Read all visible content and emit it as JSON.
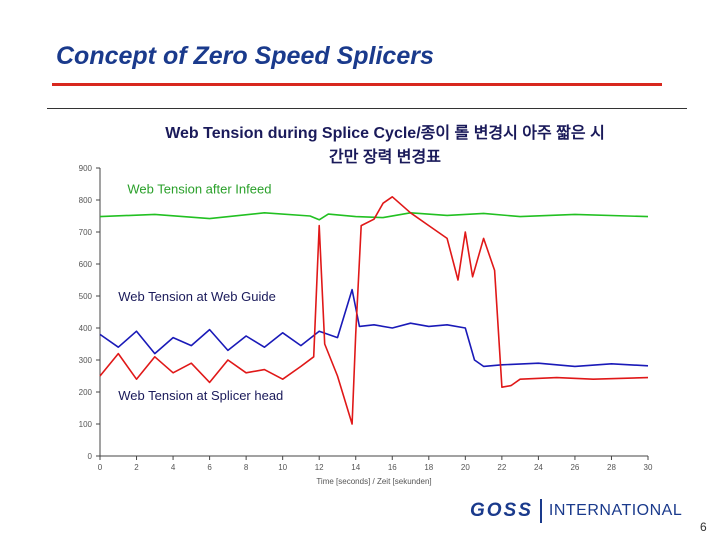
{
  "slide": {
    "title": "Concept of Zero Speed Splicers",
    "page_number": "6"
  },
  "brand": {
    "name": "GOSS",
    "suffix": "INTERNATIONAL",
    "color": "#1a3a8c"
  },
  "colors": {
    "accent_red": "#d8281e",
    "title_blue": "#1a3a8c",
    "series_green": "#22c022",
    "series_blue": "#1a1ab8",
    "series_red": "#e01818",
    "label_green": "#2aa02a"
  },
  "chart_data": {
    "type": "line",
    "title_line1": "Web Tension during Splice Cycle/종이 롤 변경시 아주 짧은 시",
    "title_line2": "간만 장력 변경표",
    "xlabel": "Time [seconds] / Zeit [sekunden]",
    "ylabel": "",
    "xlim": [
      0,
      30
    ],
    "ylim": [
      0,
      900
    ],
    "x_ticks": [
      0,
      2,
      4,
      6,
      8,
      10,
      12,
      14,
      16,
      18,
      20,
      22,
      24,
      26,
      28,
      30
    ],
    "y_ticks": [
      0,
      100,
      200,
      300,
      400,
      500,
      600,
      700,
      800,
      900
    ],
    "grid": false,
    "series": [
      {
        "name": "Web Tension after Infeed",
        "color": "#22c022",
        "x": [
          0,
          3,
          6,
          9,
          11.5,
          12,
          12.5,
          14,
          15.5,
          17,
          19,
          21,
          23,
          26,
          30
        ],
        "y": [
          748,
          755,
          742,
          760,
          750,
          738,
          756,
          748,
          745,
          760,
          752,
          758,
          748,
          755,
          748
        ]
      },
      {
        "name": "Web Tension at Web Guide",
        "color": "#1a1ab8",
        "x": [
          0,
          1,
          2,
          3,
          4,
          5,
          6,
          7,
          8,
          9,
          10,
          11,
          12,
          13,
          13.8,
          14.2,
          15,
          16,
          17,
          18,
          19,
          20,
          20.5,
          21,
          22,
          24,
          26,
          28,
          30
        ],
        "y": [
          380,
          340,
          390,
          320,
          370,
          345,
          395,
          330,
          375,
          340,
          385,
          345,
          390,
          370,
          520,
          405,
          410,
          400,
          415,
          405,
          410,
          400,
          300,
          280,
          285,
          290,
          280,
          288,
          282
        ]
      },
      {
        "name": "Web Tension at Splicer head",
        "color": "#e01818",
        "x": [
          0,
          1,
          2,
          3,
          4,
          5,
          6,
          7,
          8,
          9,
          10,
          11,
          11.7,
          12,
          12.3,
          13,
          13.8,
          14,
          14.3,
          15,
          15.5,
          16,
          17,
          18,
          19,
          19.6,
          20,
          20.4,
          21,
          21.6,
          22,
          22.5,
          23,
          25,
          27,
          30
        ],
        "y": [
          250,
          320,
          240,
          310,
          260,
          290,
          230,
          300,
          260,
          270,
          240,
          280,
          310,
          720,
          350,
          250,
          100,
          380,
          720,
          740,
          790,
          810,
          760,
          720,
          680,
          550,
          700,
          560,
          680,
          580,
          215,
          220,
          240,
          245,
          240,
          245
        ]
      }
    ],
    "annotations": [
      {
        "text": "Web Tension after Infeed",
        "color": "#2aa02a",
        "x": 1.5,
        "y": 820
      },
      {
        "text": "Web Tension at Web Guide",
        "color": "#1a1a5a",
        "x": 1.0,
        "y": 485
      },
      {
        "text": "Web Tension at Splicer head",
        "color": "#1a1a5a",
        "x": 1.0,
        "y": 175
      }
    ]
  }
}
